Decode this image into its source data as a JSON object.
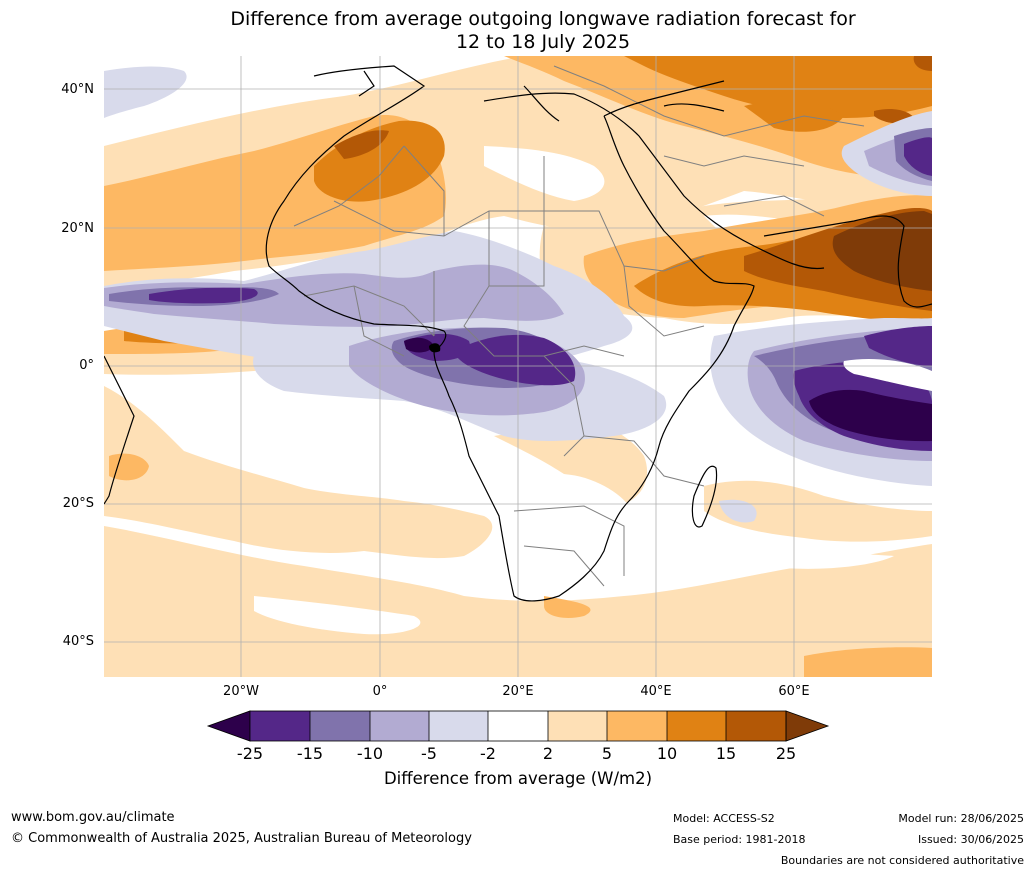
{
  "title_line1": "Difference from average outgoing longwave radiation forecast for",
  "title_line2": "12 to 18 July 2025",
  "lat_labels": [
    "40°N",
    "20°N",
    "0°",
    "20°S",
    "40°S"
  ],
  "lon_labels": [
    "20°W",
    "0°",
    "20°E",
    "40°E",
    "60°E"
  ],
  "colorbar": {
    "ticks": [
      "-25",
      "-15",
      "-10",
      "-5",
      "-2",
      "2",
      "5",
      "10",
      "15",
      "25"
    ],
    "colors": [
      "#2d004b",
      "#542788",
      "#8073ac",
      "#b2abd2",
      "#d8daeb",
      "#ffffff",
      "#fee0b6",
      "#fdb863",
      "#e08214",
      "#b35806",
      "#7f3b08"
    ],
    "title": "Difference from average (W/m2)"
  },
  "footer": {
    "website": "www.bom.gov.au/climate",
    "copyright": "© Commonwealth of Australia 2025, Australian Bureau of Meteorology",
    "model": "Model: ACCESS-S2",
    "base_period": "Base period: 1981-2018",
    "model_run": "Model run: 28/06/2025",
    "issued": "Issued: 30/06/2025",
    "disclaimer": "Boundaries are not considered authoritative"
  }
}
